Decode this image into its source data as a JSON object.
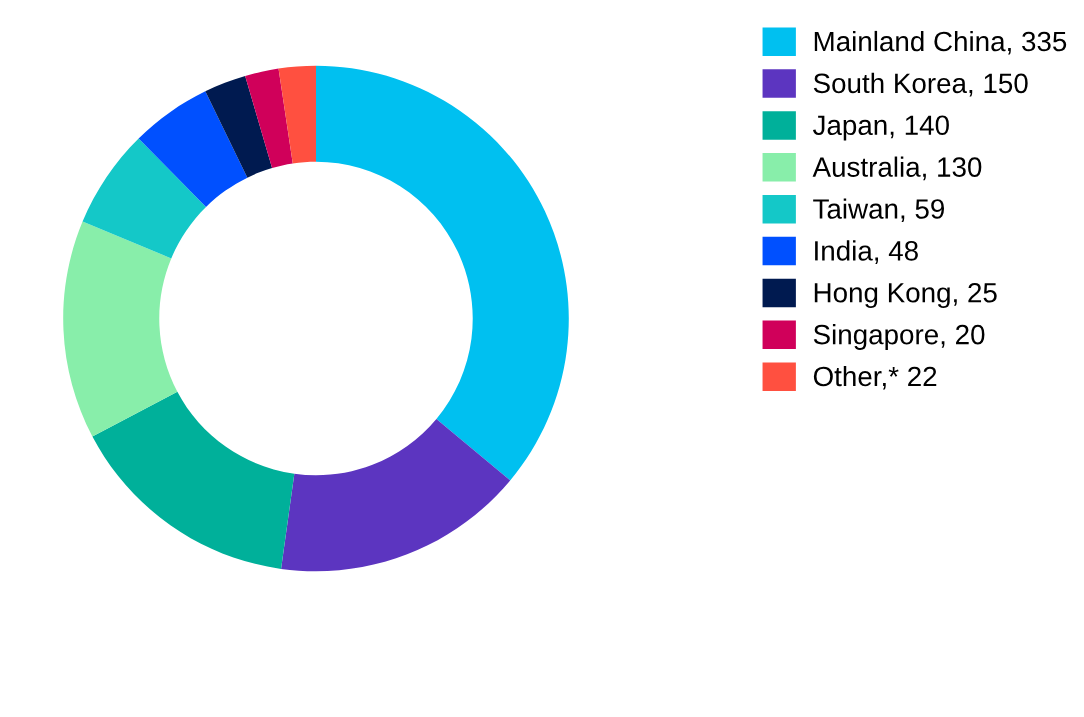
{
  "chart_data": {
    "type": "donut",
    "categories": [
      "Mainland China, 335",
      "South Korea, 150",
      "Japan, 140",
      "Australia, 130",
      "Taiwan, 59",
      "India, 48",
      "Hong Kong, 25",
      "Singapore, 20",
      "Other,* 22"
    ],
    "values": [
      335,
      150,
      140,
      130,
      59,
      48,
      25,
      20,
      22
    ],
    "colors": [
      "#00c0f0",
      "#5c35c0",
      "#00b09a",
      "#88eeaa",
      "#14c8c8",
      "#0050ff",
      "#001a50",
      "#d0005a",
      "#ff5040"
    ],
    "legend": "top right"
  }
}
